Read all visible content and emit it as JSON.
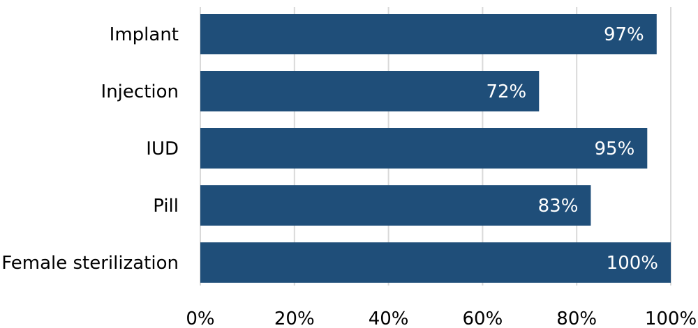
{
  "chart_data": {
    "type": "bar",
    "orientation": "horizontal",
    "categories": [
      "Implant",
      "Injection",
      "IUD",
      "Pill",
      "Female sterilization"
    ],
    "values": [
      97,
      72,
      95,
      83,
      100
    ],
    "data_labels": [
      "97%",
      "72%",
      "95%",
      "83%",
      "100%"
    ],
    "xlim": [
      0,
      100
    ],
    "x_ticks": [
      0,
      20,
      40,
      60,
      80,
      100
    ],
    "x_tick_labels": [
      "0%",
      "20%",
      "40%",
      "60%",
      "80%",
      "100%"
    ],
    "grid": "vertical",
    "legend": "none",
    "bar_color": "#1f4e79",
    "label_color": "#ffffff"
  }
}
